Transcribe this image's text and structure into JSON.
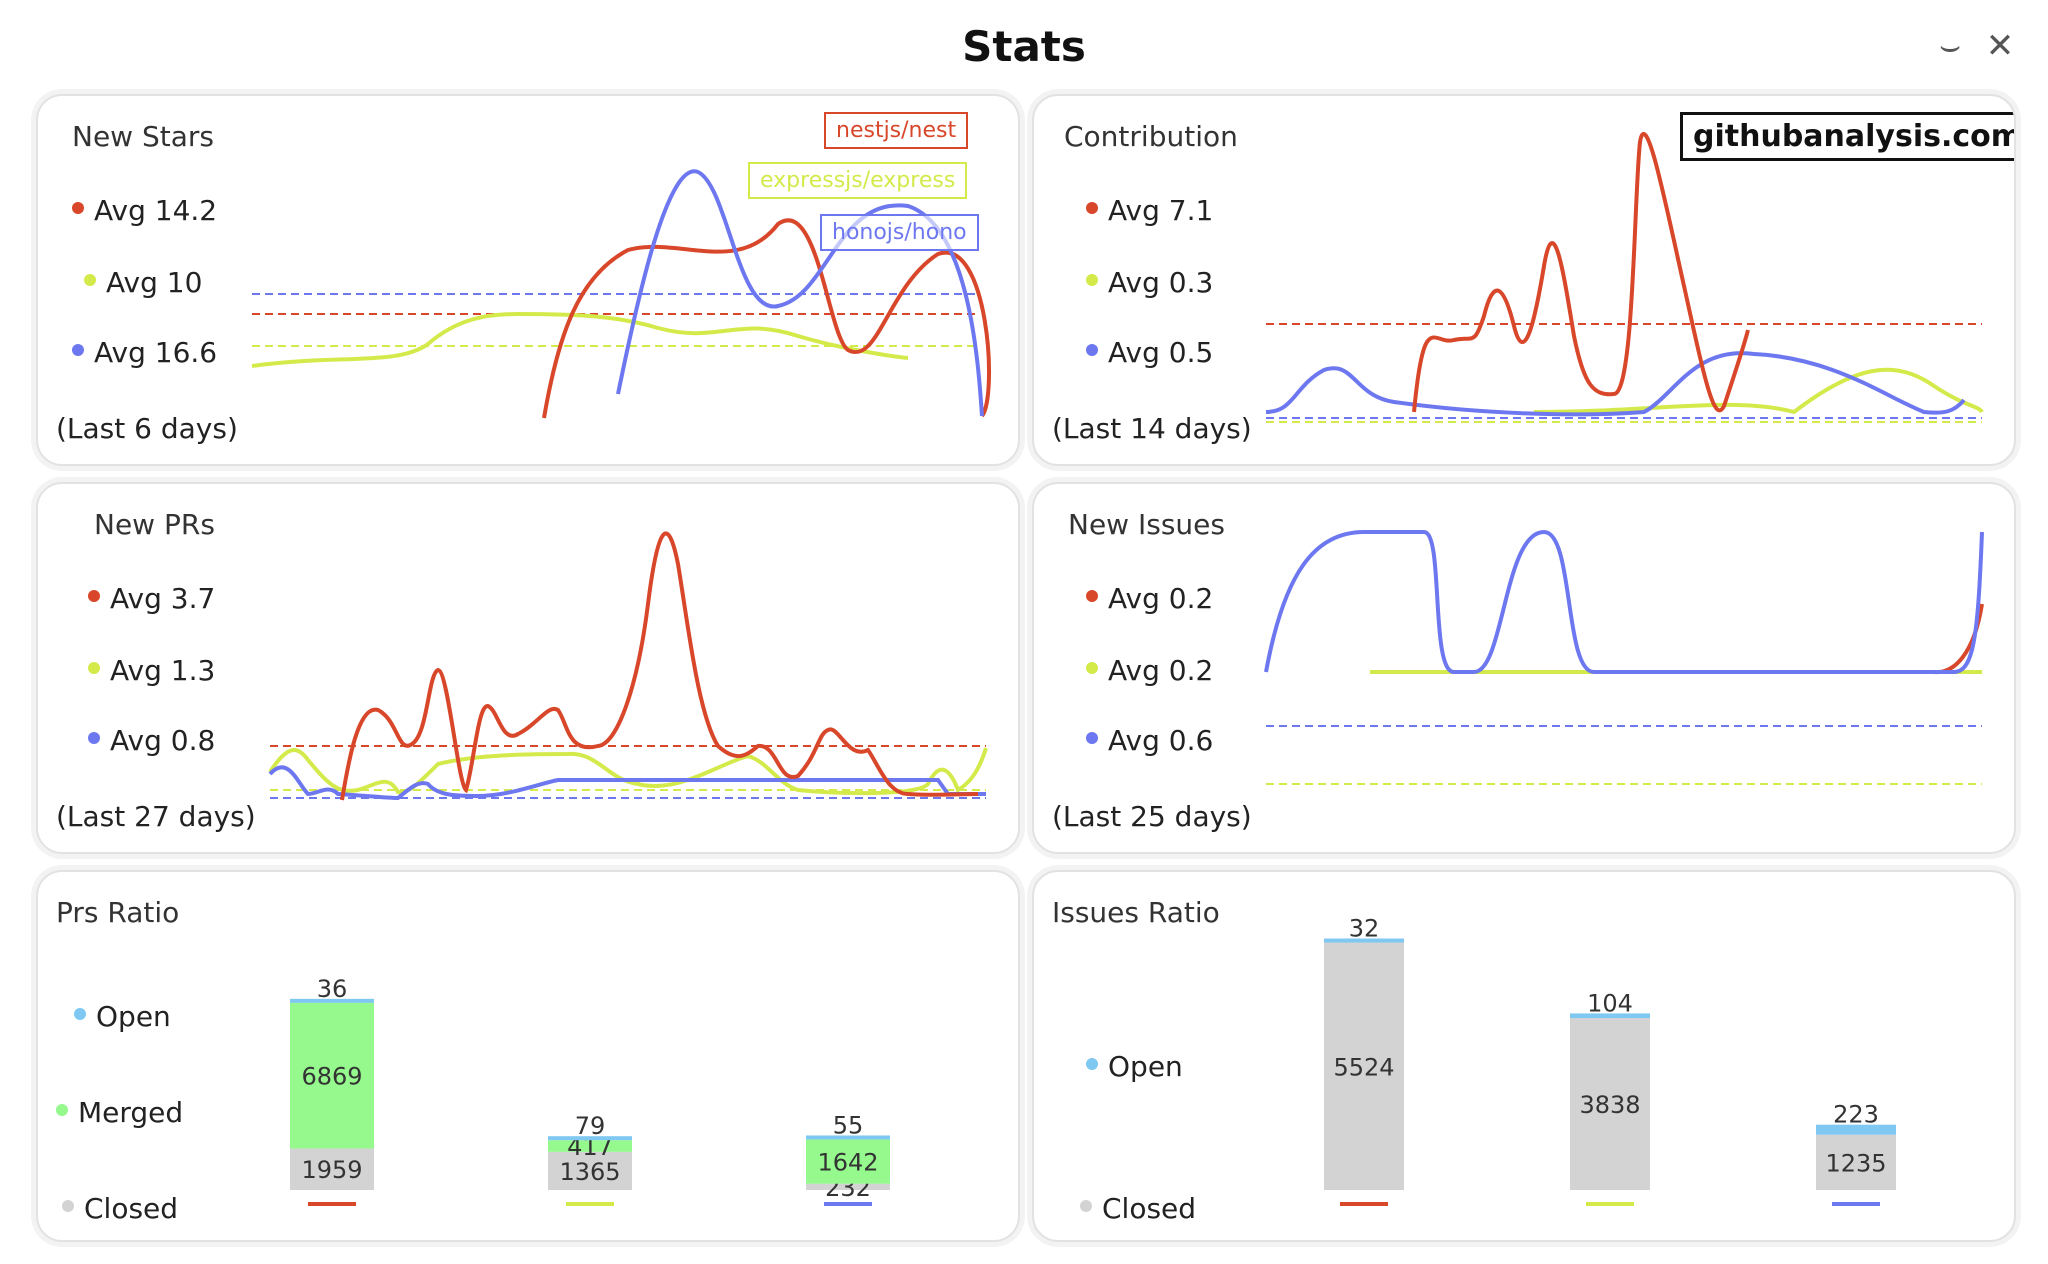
{
  "window": {
    "title": "Stats",
    "minimize_icon": "minimize-icon",
    "close_icon": "close-icon"
  },
  "colors": {
    "nest": "#d9472b",
    "express": "#d4ea4b",
    "hono": "#6d78f0",
    "open": "#7ec8f2",
    "merged": "#95f98e",
    "closed": "#d3d3d3"
  },
  "panels": {
    "new_stars": {
      "title": "New Stars",
      "avgs": [
        "Avg 14.2",
        "Avg 10",
        "Avg 16.6"
      ],
      "range": "(Last 6 days)",
      "legend": [
        "nestjs/nest",
        "expressjs/express",
        "honojs/hono"
      ]
    },
    "contribution": {
      "title": "Contribution",
      "avgs": [
        "Avg 7.1",
        "Avg 0.3",
        "Avg 0.5"
      ],
      "range": "(Last 14  days)",
      "brand": "githubanalysis.com"
    },
    "new_prs": {
      "title": "New PRs",
      "avgs": [
        "Avg 3.7",
        "Avg 1.3",
        "Avg 0.8"
      ],
      "range": "(Last 27 days)"
    },
    "new_issues": {
      "title": "New Issues",
      "avgs": [
        "Avg 0.2",
        "Avg 0.2",
        "Avg 0.6"
      ],
      "range": "(Last 25 days)"
    },
    "prs_ratio": {
      "title": "Prs Ratio",
      "legend": [
        "Open",
        "Merged",
        "Closed"
      ]
    },
    "issues_ratio": {
      "title": "Issues Ratio",
      "legend": [
        "Open",
        "Closed"
      ]
    }
  },
  "chart_data": [
    {
      "type": "bar",
      "title": "Prs Ratio",
      "categories": [
        "nestjs/nest",
        "expressjs/express",
        "honojs/hono"
      ],
      "series": [
        {
          "name": "Closed",
          "values": [
            1959,
            1365,
            232
          ]
        },
        {
          "name": "Merged",
          "values": [
            6869,
            417,
            1642
          ]
        },
        {
          "name": "Open",
          "values": [
            36,
            79,
            55
          ]
        }
      ]
    },
    {
      "type": "bar",
      "title": "Issues Ratio",
      "categories": [
        "nestjs/nest",
        "expressjs/express",
        "honojs/hono"
      ],
      "series": [
        {
          "name": "Closed",
          "values": [
            5524,
            3838,
            1235
          ]
        },
        {
          "name": "Open",
          "values": [
            32,
            104,
            223
          ]
        }
      ]
    }
  ]
}
